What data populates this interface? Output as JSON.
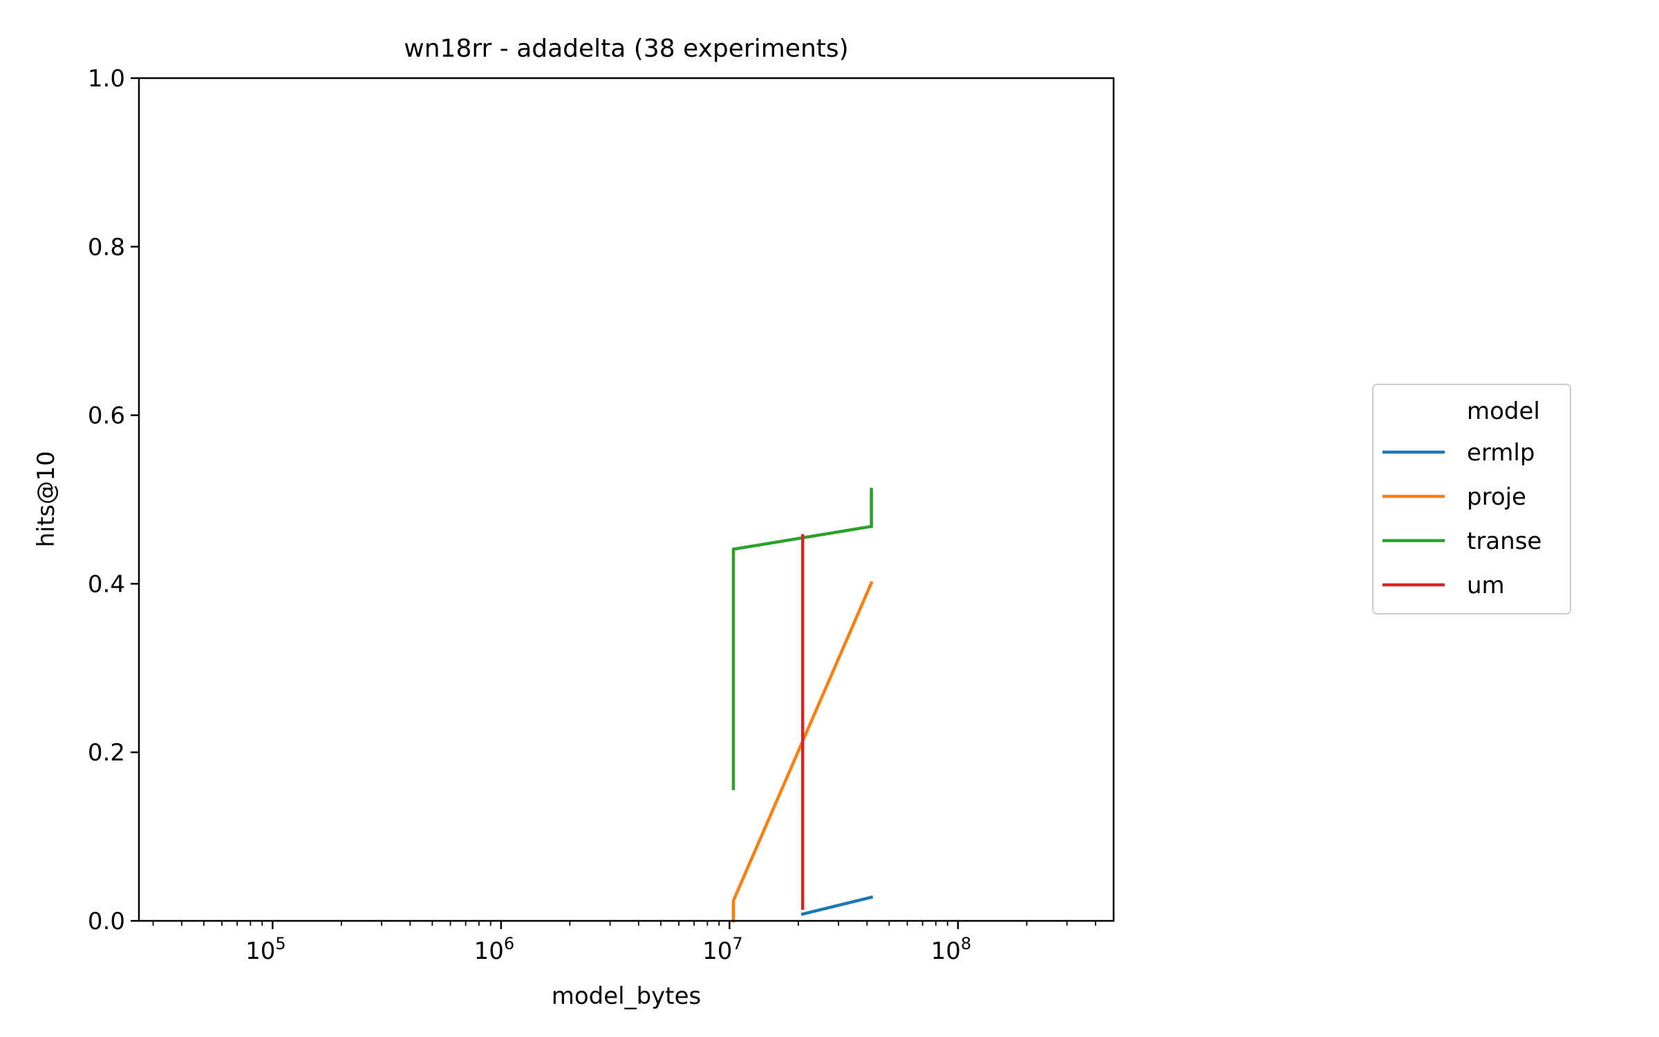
{
  "chart_data": {
    "type": "line",
    "title": "wn18rr - adadelta  (38 experiments)",
    "xlabel": "model_bytes",
    "ylabel": "hits@10",
    "xscale": "log",
    "xlim": [
      26000,
      480000000
    ],
    "ylim": [
      0,
      1
    ],
    "yticks": [
      0.0,
      0.2,
      0.4,
      0.6,
      0.8,
      1.0
    ],
    "ytick_labels": [
      "0.0",
      "0.2",
      "0.4",
      "0.6",
      "0.8",
      "1.0"
    ],
    "xticks": [
      {
        "value": 100000,
        "base": "10",
        "exp": "5"
      },
      {
        "value": 1000000,
        "base": "10",
        "exp": "6"
      },
      {
        "value": 10000000,
        "base": "10",
        "exp": "7"
      },
      {
        "value": 100000000,
        "base": "10",
        "exp": "8"
      }
    ],
    "grid": false,
    "legend": {
      "title": "model",
      "position": "right"
    },
    "series": [
      {
        "name": "ermlp",
        "color": "#1f77b4",
        "x": [
          20900000,
          41800000
        ],
        "y": [
          0.008,
          0.028
        ]
      },
      {
        "name": "proje",
        "color": "#ff7f0e",
        "x": [
          10400000,
          10400000,
          41800000
        ],
        "y": [
          0.0,
          0.024,
          0.401
        ]
      },
      {
        "name": "transe",
        "color": "#2ca02c",
        "x": [
          10400000,
          10400000,
          41800000,
          41800000
        ],
        "y": [
          0.157,
          0.441,
          0.468,
          0.512
        ]
      },
      {
        "name": "um",
        "color": "#d62728",
        "x": [
          20900000,
          20900000
        ],
        "y": [
          0.015,
          0.457
        ]
      }
    ]
  }
}
